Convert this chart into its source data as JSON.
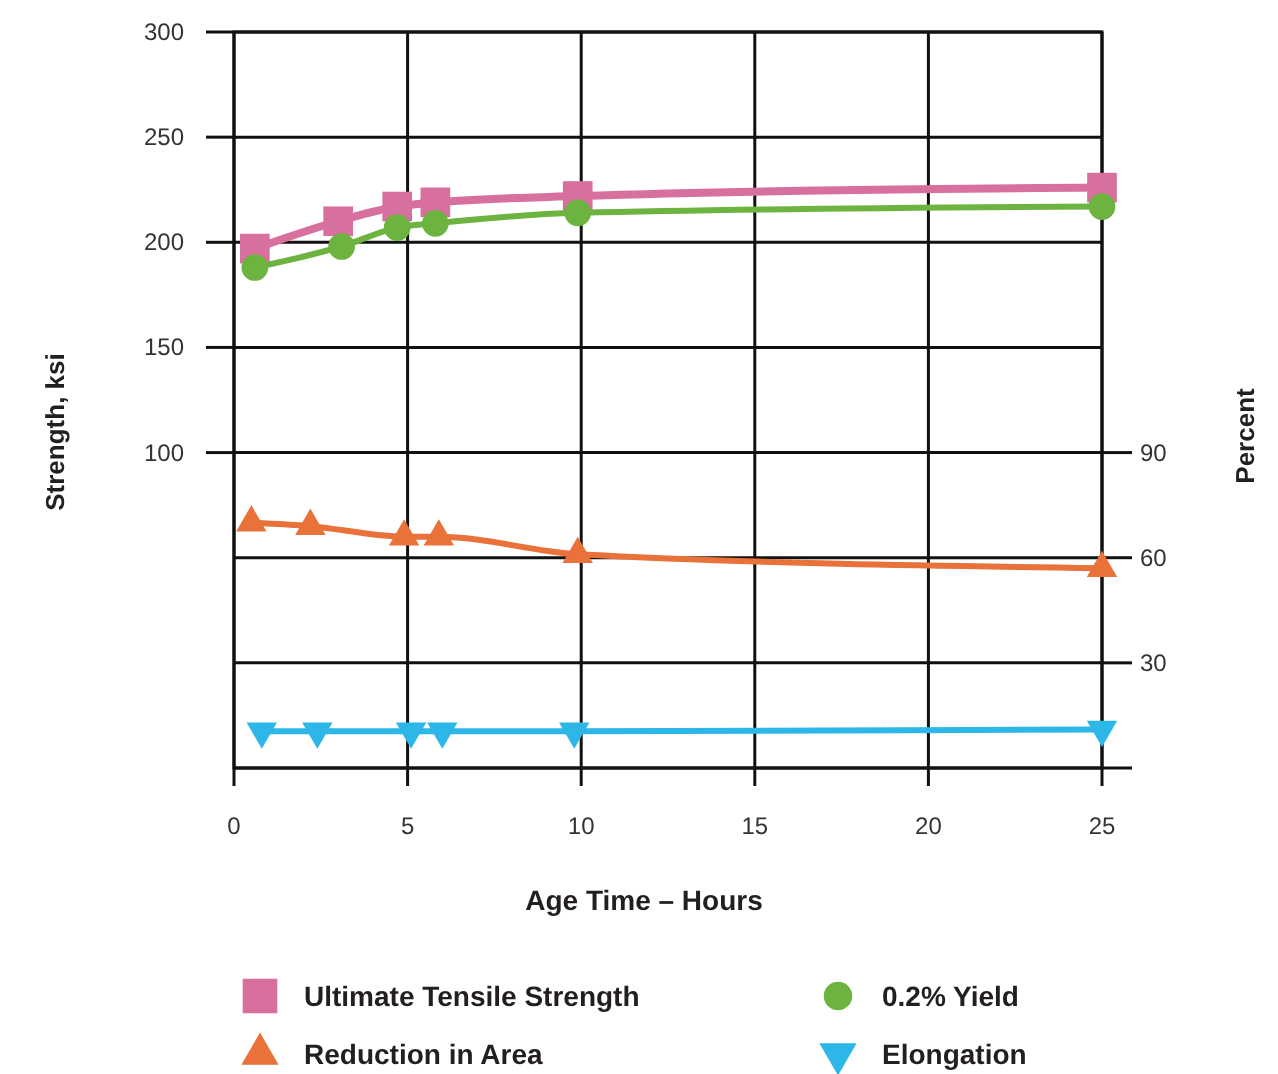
{
  "chart_data": {
    "type": "line",
    "xlabel": "Age Time – Hours",
    "ylabel": "Strength, ksi",
    "y2label": "Percent",
    "xlim": [
      0,
      25
    ],
    "xticks": [
      0,
      5,
      10,
      15,
      20,
      25
    ],
    "ylim": [
      -50,
      300
    ],
    "yticks": [
      100,
      150,
      200,
      250,
      300
    ],
    "y2lim": [
      0,
      210
    ],
    "y2ticks": [
      {
        "value": 0,
        "label": null
      },
      30,
      60,
      90
    ],
    "grid": true,
    "legend": "bottom",
    "series": [
      {
        "name": "Ultimate Tensile Strength",
        "color": "#d8709f",
        "marker": "square",
        "x": [
          0.6,
          3,
          4.7,
          5.8,
          9.9,
          25
        ],
        "values": [
          197,
          210,
          217,
          219,
          222,
          226
        ]
      },
      {
        "name": "0.2% Yield",
        "color": "#6cb33f",
        "marker": "circle",
        "x": [
          0.6,
          3.1,
          4.7,
          5.8,
          9.9,
          25
        ],
        "values": [
          188,
          198,
          207,
          209,
          214,
          217
        ]
      },
      {
        "name": "Reduction in Area",
        "color": "#e9713a",
        "marker": "triangle",
        "axis": "y2",
        "x": [
          0.5,
          2.2,
          4.9,
          5.9,
          9.9,
          25
        ],
        "values": [
          70,
          69,
          66,
          66,
          61,
          57
        ]
      },
      {
        "name": "Elongation",
        "color": "#2db6e8",
        "marker": "triangle-down",
        "axis": "y2",
        "x": [
          0.8,
          2.4,
          5.1,
          6,
          9.8,
          25
        ],
        "values": [
          10.5,
          10.5,
          10.5,
          10.5,
          10.5,
          11
        ]
      }
    ]
  }
}
